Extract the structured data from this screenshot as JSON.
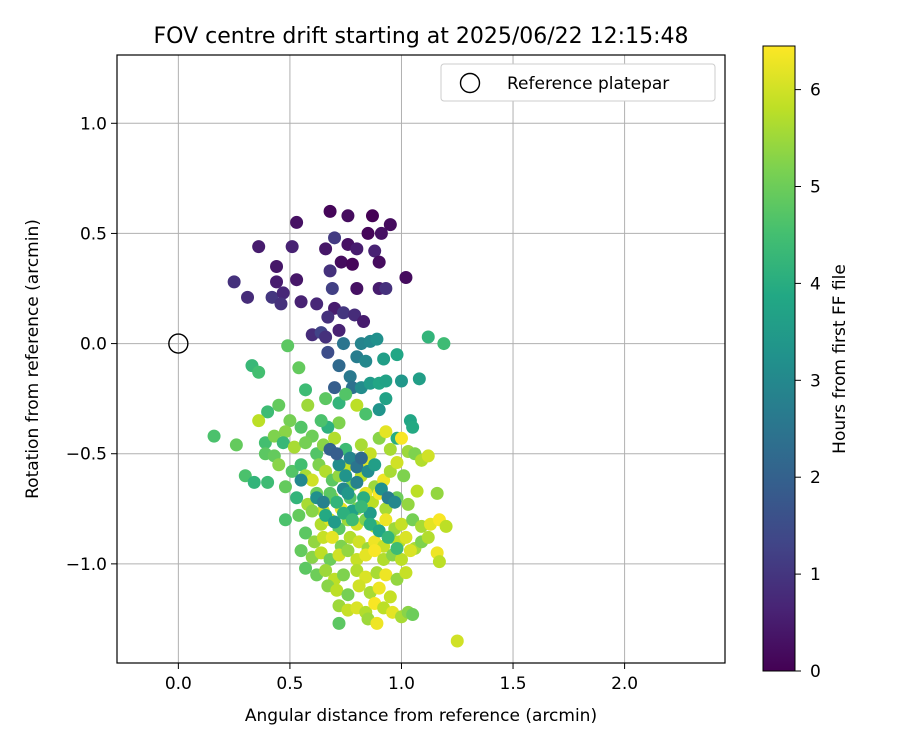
{
  "chart_data": {
    "type": "scatter",
    "title": "FOV centre drift starting at 2025/06/22 12:15:48",
    "xlabel": "Angular distance from reference (arcmin)",
    "ylabel": "Rotation from reference (arcmin)",
    "xlim": [
      -0.275,
      2.45
    ],
    "ylim": [
      -1.45,
      1.31
    ],
    "xticks": [
      {
        "v": 0.0,
        "label": "0.0"
      },
      {
        "v": 0.5,
        "label": "0.5"
      },
      {
        "v": 1.0,
        "label": "1.0"
      },
      {
        "v": 1.5,
        "label": "1.5"
      },
      {
        "v": 2.0,
        "label": "2.0"
      }
    ],
    "yticks": [
      {
        "v": -1.0,
        "label": "−1.0"
      },
      {
        "v": -0.5,
        "label": "−0.5"
      },
      {
        "v": 0.0,
        "label": "0.0"
      },
      {
        "v": 0.5,
        "label": "0.5"
      },
      {
        "v": 1.0,
        "label": "1.0"
      }
    ],
    "grid": true,
    "legend": {
      "position": "top-right",
      "entries": [
        "Reference platepar"
      ]
    },
    "reference_point": {
      "x": 0.0,
      "y": 0.0,
      "label": "Reference platepar"
    },
    "colorbar": {
      "label": "Hours from first FF file",
      "min": 0,
      "max": 6.45,
      "ticks": [
        {
          "v": 0,
          "label": "0"
        },
        {
          "v": 1,
          "label": "1"
        },
        {
          "v": 2,
          "label": "2"
        },
        {
          "v": 3,
          "label": "3"
        },
        {
          "v": 4,
          "label": "4"
        },
        {
          "v": 5,
          "label": "5"
        },
        {
          "v": 6,
          "label": "6"
        }
      ],
      "colormap": "viridis"
    },
    "points": [
      [
        0.36,
        0.44,
        0.5
      ],
      [
        0.44,
        0.35,
        0.4
      ],
      [
        0.51,
        0.44,
        0.6
      ],
      [
        0.53,
        0.55,
        0.3
      ],
      [
        0.25,
        0.28,
        0.9
      ],
      [
        0.31,
        0.21,
        0.8
      ],
      [
        0.42,
        0.21,
        1.0
      ],
      [
        0.44,
        0.28,
        0.5
      ],
      [
        0.47,
        0.23,
        0.7
      ],
      [
        0.46,
        0.18,
        0.9
      ],
      [
        0.53,
        0.29,
        0.4
      ],
      [
        0.55,
        0.19,
        0.6
      ],
      [
        0.68,
        0.6,
        0.1
      ],
      [
        0.76,
        0.58,
        0.2
      ],
      [
        0.87,
        0.58,
        0.0
      ],
      [
        0.95,
        0.54,
        0.2
      ],
      [
        0.7,
        0.48,
        1.1
      ],
      [
        0.76,
        0.45,
        0.3
      ],
      [
        0.8,
        0.43,
        0.5
      ],
      [
        0.66,
        0.43,
        0.4
      ],
      [
        0.85,
        0.5,
        0.1
      ],
      [
        0.91,
        0.5,
        0.3
      ],
      [
        0.73,
        0.37,
        0.2
      ],
      [
        0.78,
        0.36,
        0.1
      ],
      [
        0.88,
        0.42,
        0.6
      ],
      [
        0.9,
        0.37,
        0.2
      ],
      [
        0.68,
        0.33,
        0.9
      ],
      [
        0.69,
        0.25,
        1.2
      ],
      [
        0.8,
        0.25,
        0.3
      ],
      [
        0.9,
        0.25,
        0.5
      ],
      [
        0.93,
        0.25,
        0.9
      ],
      [
        1.02,
        0.3,
        0.2
      ],
      [
        0.62,
        0.18,
        0.7
      ],
      [
        0.7,
        0.16,
        0.5
      ],
      [
        0.74,
        0.14,
        1.0
      ],
      [
        0.79,
        0.13,
        0.8
      ],
      [
        0.67,
        0.12,
        0.9
      ],
      [
        0.83,
        0.1,
        0.5
      ],
      [
        0.6,
        0.04,
        0.8
      ],
      [
        0.64,
        0.05,
        1.3
      ],
      [
        0.66,
        0.03,
        0.9
      ],
      [
        0.72,
        0.06,
        0.6
      ],
      [
        0.67,
        -0.04,
        1.5
      ],
      [
        0.74,
        0.0,
        2.5
      ],
      [
        0.82,
        0.0,
        2.9
      ],
      [
        0.86,
        0.01,
        3.0
      ],
      [
        0.89,
        0.02,
        3.2
      ],
      [
        0.8,
        -0.06,
        2.7
      ],
      [
        0.84,
        -0.08,
        3.0
      ],
      [
        0.92,
        -0.07,
        3.6
      ],
      [
        0.98,
        -0.05,
        3.8
      ],
      [
        0.72,
        -0.1,
        2.2
      ],
      [
        0.77,
        -0.15,
        2.6
      ],
      [
        0.7,
        -0.2,
        1.9
      ],
      [
        0.78,
        -0.2,
        2.4
      ],
      [
        0.82,
        -0.2,
        3.1
      ],
      [
        0.86,
        -0.18,
        3.5
      ],
      [
        0.9,
        -0.18,
        3.8
      ],
      [
        0.93,
        -0.17,
        3.7
      ],
      [
        1.0,
        -0.17,
        3.4
      ],
      [
        1.08,
        -0.16,
        3.6
      ],
      [
        1.12,
        0.03,
        4.2
      ],
      [
        1.19,
        0.0,
        4.4
      ],
      [
        0.9,
        -0.3,
        3.3
      ],
      [
        0.93,
        -0.25,
        3.7
      ],
      [
        1.04,
        -0.35,
        3.8
      ],
      [
        1.05,
        -0.38,
        3.9
      ],
      [
        0.98,
        -0.43,
        4.0
      ],
      [
        0.72,
        -0.27,
        4.2
      ],
      [
        0.75,
        -0.23,
        4.7
      ],
      [
        0.8,
        -0.28,
        5.8
      ],
      [
        0.84,
        -0.32,
        4.6
      ],
      [
        0.49,
        -0.01,
        4.8
      ],
      [
        0.33,
        -0.1,
        4.3
      ],
      [
        0.36,
        -0.13,
        4.5
      ],
      [
        0.54,
        -0.11,
        4.9
      ],
      [
        0.57,
        -0.21,
        4.4
      ],
      [
        0.66,
        -0.25,
        4.8
      ],
      [
        0.72,
        -0.36,
        5.2
      ],
      [
        0.67,
        -0.38,
        4.1
      ],
      [
        0.58,
        -0.28,
        5.5
      ],
      [
        0.64,
        -0.35,
        4.6
      ],
      [
        0.6,
        -0.42,
        5.0
      ],
      [
        0.55,
        -0.38,
        4.7
      ],
      [
        0.45,
        -0.28,
        4.9
      ],
      [
        0.5,
        -0.35,
        5.1
      ],
      [
        0.48,
        -0.4,
        5.3
      ],
      [
        0.4,
        -0.31,
        4.4
      ],
      [
        0.36,
        -0.35,
        5.8
      ],
      [
        0.39,
        -0.45,
        4.5
      ],
      [
        0.43,
        -0.42,
        5.2
      ],
      [
        0.47,
        -0.45,
        4.3
      ],
      [
        0.52,
        -0.47,
        5.6
      ],
      [
        0.57,
        -0.45,
        5.1
      ],
      [
        0.62,
        -0.5,
        4.7
      ],
      [
        0.65,
        -0.46,
        5.3
      ],
      [
        0.7,
        -0.43,
        5.7
      ],
      [
        0.75,
        -0.48,
        4.4
      ],
      [
        0.78,
        -0.53,
        5.0
      ],
      [
        0.82,
        -0.46,
        5.6
      ],
      [
        0.86,
        -0.5,
        5.9
      ],
      [
        0.9,
        -0.43,
        5.3
      ],
      [
        0.93,
        -0.4,
        6.2
      ],
      [
        0.95,
        -0.48,
        5.6
      ],
      [
        1.0,
        -0.43,
        6.4
      ],
      [
        1.03,
        -0.49,
        5.5
      ],
      [
        1.06,
        -0.5,
        5.2
      ],
      [
        1.09,
        -0.53,
        5.7
      ],
      [
        1.12,
        -0.51,
        6.0
      ],
      [
        0.16,
        -0.42,
        4.6
      ],
      [
        0.26,
        -0.46,
        4.9
      ],
      [
        0.3,
        -0.6,
        4.6
      ],
      [
        0.34,
        -0.63,
        4.2
      ],
      [
        0.39,
        -0.5,
        4.8
      ],
      [
        0.43,
        -0.51,
        4.9
      ],
      [
        0.45,
        -0.55,
        5.3
      ],
      [
        0.51,
        -0.58,
        4.7
      ],
      [
        0.55,
        -0.55,
        4.5
      ],
      [
        0.57,
        -0.6,
        5.6
      ],
      [
        0.6,
        -0.62,
        6.0
      ],
      [
        0.63,
        -0.55,
        5.2
      ],
      [
        0.66,
        -0.58,
        5.7
      ],
      [
        0.69,
        -0.62,
        4.8
      ],
      [
        0.72,
        -0.6,
        5.4
      ],
      [
        0.75,
        -0.56,
        5.9
      ],
      [
        0.78,
        -0.64,
        5.2
      ],
      [
        0.82,
        -0.6,
        5.8
      ],
      [
        0.85,
        -0.55,
        6.1
      ],
      [
        0.88,
        -0.65,
        5.5
      ],
      [
        0.92,
        -0.62,
        6.3
      ],
      [
        0.95,
        -0.58,
        5.6
      ],
      [
        0.98,
        -0.54,
        6.0
      ],
      [
        1.01,
        -0.6,
        5.2
      ],
      [
        0.4,
        -0.63,
        4.4
      ],
      [
        0.48,
        -0.65,
        4.9
      ],
      [
        0.53,
        -0.7,
        4.2
      ],
      [
        0.58,
        -0.73,
        5.6
      ],
      [
        0.62,
        -0.68,
        5.0
      ],
      [
        0.65,
        -0.76,
        6.0
      ],
      [
        0.69,
        -0.7,
        5.4
      ],
      [
        0.73,
        -0.75,
        6.3
      ],
      [
        0.77,
        -0.7,
        4.7
      ],
      [
        0.8,
        -0.75,
        5.2
      ],
      [
        0.84,
        -0.68,
        6.2
      ],
      [
        0.87,
        -0.72,
        5.8
      ],
      [
        0.9,
        -0.68,
        6.4
      ],
      [
        0.93,
        -0.75,
        5.6
      ],
      [
        0.98,
        -0.7,
        5.0
      ],
      [
        1.03,
        -0.73,
        5.4
      ],
      [
        1.07,
        -0.67,
        5.8
      ],
      [
        1.16,
        -0.68,
        5.4
      ],
      [
        0.48,
        -0.8,
        4.6
      ],
      [
        0.54,
        -0.78,
        4.9
      ],
      [
        0.6,
        -0.76,
        5.3
      ],
      [
        0.64,
        -0.82,
        5.7
      ],
      [
        0.68,
        -0.8,
        6.1
      ],
      [
        0.72,
        -0.84,
        4.8
      ],
      [
        0.76,
        -0.8,
        5.5
      ],
      [
        0.8,
        -0.82,
        6.0
      ],
      [
        0.84,
        -0.8,
        5.2
      ],
      [
        0.88,
        -0.83,
        5.8
      ],
      [
        0.93,
        -0.8,
        6.3
      ],
      [
        0.97,
        -0.84,
        5.5
      ],
      [
        1.0,
        -0.82,
        5.9
      ],
      [
        1.05,
        -0.8,
        5.1
      ],
      [
        1.09,
        -0.83,
        5.6
      ],
      [
        1.13,
        -0.82,
        6.2
      ],
      [
        1.17,
        -0.8,
        6.4
      ],
      [
        1.2,
        -0.83,
        5.8
      ],
      [
        0.57,
        -0.86,
        4.8
      ],
      [
        0.61,
        -0.9,
        5.4
      ],
      [
        0.65,
        -0.88,
        5.9
      ],
      [
        0.69,
        -0.88,
        6.2
      ],
      [
        0.73,
        -0.92,
        5.2
      ],
      [
        0.77,
        -0.88,
        5.7
      ],
      [
        0.81,
        -0.9,
        6.0
      ],
      [
        0.85,
        -0.93,
        5.5
      ],
      [
        0.88,
        -0.9,
        6.3
      ],
      [
        0.92,
        -0.92,
        5.9
      ],
      [
        0.95,
        -0.88,
        5.3
      ],
      [
        0.99,
        -0.9,
        5.8
      ],
      [
        1.02,
        -0.88,
        6.1
      ],
      [
        1.06,
        -0.93,
        5.6
      ],
      [
        1.09,
        -0.9,
        5.2
      ],
      [
        1.12,
        -0.88,
        5.7
      ],
      [
        0.55,
        -0.94,
        4.9
      ],
      [
        0.6,
        -0.97,
        5.3
      ],
      [
        0.64,
        -0.95,
        5.8
      ],
      [
        0.68,
        -0.98,
        5.0
      ],
      [
        0.72,
        -0.96,
        6.0
      ],
      [
        0.76,
        -0.94,
        5.4
      ],
      [
        0.8,
        -0.98,
        5.9
      ],
      [
        0.84,
        -0.96,
        6.2
      ],
      [
        0.88,
        -0.94,
        6.4
      ],
      [
        0.92,
        -0.98,
        5.7
      ],
      [
        0.96,
        -0.96,
        5.3
      ],
      [
        1.0,
        -0.98,
        5.8
      ],
      [
        1.04,
        -0.94,
        6.1
      ],
      [
        1.16,
        -0.95,
        6.3
      ],
      [
        1.17,
        -0.99,
        5.8
      ],
      [
        0.57,
        -1.02,
        4.8
      ],
      [
        0.62,
        -1.05,
        5.0
      ],
      [
        0.66,
        -1.03,
        5.5
      ],
      [
        0.7,
        -1.07,
        5.8
      ],
      [
        0.74,
        -1.05,
        5.2
      ],
      [
        0.8,
        -1.03,
        5.7
      ],
      [
        0.84,
        -1.06,
        6.1
      ],
      [
        0.89,
        -1.04,
        5.6
      ],
      [
        0.93,
        -1.05,
        6.3
      ],
      [
        0.98,
        -1.07,
        5.4
      ],
      [
        1.02,
        -1.04,
        5.9
      ],
      [
        0.67,
        -1.1,
        5.3
      ],
      [
        0.71,
        -1.12,
        5.8
      ],
      [
        0.76,
        -1.14,
        5.1
      ],
      [
        0.81,
        -1.1,
        6.0
      ],
      [
        0.86,
        -1.13,
        5.6
      ],
      [
        0.9,
        -1.11,
        6.3
      ],
      [
        0.95,
        -1.15,
        5.9
      ],
      [
        0.72,
        -1.19,
        5.5
      ],
      [
        0.76,
        -1.21,
        5.9
      ],
      [
        0.8,
        -1.2,
        6.1
      ],
      [
        0.84,
        -1.22,
        5.7
      ],
      [
        0.88,
        -1.18,
        6.4
      ],
      [
        0.92,
        -1.2,
        5.8
      ],
      [
        0.96,
        -1.22,
        6.2
      ],
      [
        1.0,
        -1.24,
        5.6
      ],
      [
        1.03,
        -1.22,
        5.3
      ],
      [
        1.05,
        -1.23,
        5.0
      ],
      [
        0.72,
        -1.27,
        4.8
      ],
      [
        0.85,
        -1.25,
        5.5
      ],
      [
        0.89,
        -1.27,
        6.3
      ],
      [
        1.25,
        -1.35,
        6.0
      ],
      [
        0.68,
        -0.68,
        4.8
      ],
      [
        0.71,
        -0.72,
        4.2
      ],
      [
        0.74,
        -0.66,
        3.0
      ],
      [
        0.76,
        -0.68,
        3.4
      ],
      [
        0.78,
        -0.76,
        3.7
      ],
      [
        0.8,
        -0.63,
        2.8
      ],
      [
        0.83,
        -0.7,
        4.0
      ],
      [
        0.86,
        -0.77,
        3.5
      ],
      [
        0.72,
        -0.55,
        3.1
      ],
      [
        0.75,
        -0.6,
        3.3
      ],
      [
        0.77,
        -0.52,
        2.9
      ],
      [
        0.8,
        -0.56,
        2.5
      ],
      [
        0.68,
        -0.48,
        2.0
      ],
      [
        0.71,
        -0.5,
        1.9
      ],
      [
        0.82,
        -0.52,
        2.2
      ],
      [
        0.85,
        -0.58,
        3.1
      ],
      [
        0.88,
        -0.55,
        3.6
      ],
      [
        0.91,
        -0.66,
        3.2
      ],
      [
        0.94,
        -0.7,
        2.7
      ],
      [
        0.97,
        -0.72,
        3.0
      ],
      [
        0.62,
        -0.7,
        3.2
      ],
      [
        0.65,
        -0.72,
        2.8
      ],
      [
        0.66,
        -0.78,
        3.9
      ],
      [
        0.7,
        -0.81,
        3.5
      ],
      [
        0.74,
        -0.77,
        4.1
      ],
      [
        0.78,
        -0.8,
        4.4
      ],
      [
        0.82,
        -0.74,
        4.3
      ],
      [
        0.86,
        -0.82,
        4.0
      ],
      [
        0.9,
        -0.85,
        3.8
      ],
      [
        0.94,
        -0.88,
        4.2
      ],
      [
        0.98,
        -0.93,
        4.4
      ],
      [
        0.55,
        -0.62,
        3.0
      ]
    ]
  }
}
